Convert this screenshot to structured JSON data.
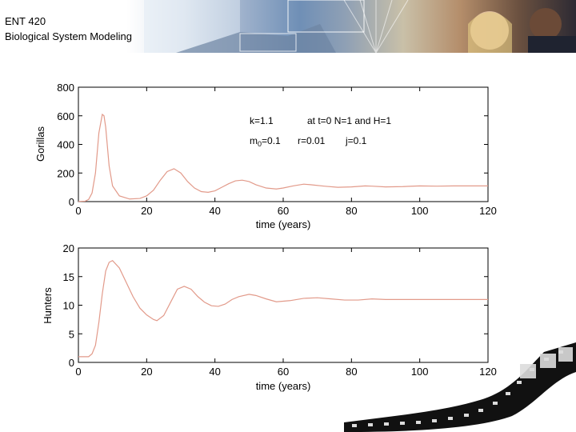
{
  "header": {
    "course_code": "ENT 420",
    "course_title": "Biological System Modeling"
  },
  "annotations": {
    "k": "k=1.1",
    "initial": "at t=0 N=1 and H=1",
    "m0": "m",
    "m0_sub": "0",
    "m0_value": "=0.1",
    "r": "r=0.01",
    "j": "j=0.1"
  },
  "colors": {
    "line": "#e29a8a",
    "axis": "#000000"
  },
  "chart_data": [
    {
      "type": "line",
      "xlabel": "time (years)",
      "ylabel": "Gorillas",
      "xlim": [
        0,
        120
      ],
      "ylim": [
        0,
        800
      ],
      "xticks": [
        0,
        20,
        40,
        60,
        80,
        100,
        120
      ],
      "yticks": [
        0,
        200,
        400,
        600,
        800
      ],
      "series": [
        {
          "x": [
            0,
            2,
            3,
            4,
            5,
            6,
            7,
            7.5,
            8,
            9,
            10,
            12,
            15,
            18,
            20,
            22,
            24,
            26,
            28,
            30,
            32,
            34,
            36,
            38,
            40,
            42,
            44,
            46,
            48,
            50,
            52,
            55,
            58,
            60,
            63,
            66,
            68,
            72,
            76,
            80,
            84,
            86,
            90,
            95,
            100,
            105,
            110,
            120
          ],
          "y": [
            1,
            3,
            15,
            60,
            200,
            480,
            610,
            600,
            520,
            250,
            110,
            40,
            18,
            22,
            40,
            80,
            150,
            210,
            230,
            200,
            140,
            95,
            70,
            65,
            75,
            100,
            125,
            145,
            150,
            140,
            118,
            95,
            88,
            95,
            110,
            122,
            118,
            108,
            100,
            103,
            110,
            108,
            103,
            105,
            110,
            108,
            110,
            110
          ]
        }
      ]
    },
    {
      "type": "line",
      "xlabel": "time (years)",
      "ylabel": "Hunters",
      "xlim": [
        0,
        120
      ],
      "ylim": [
        0,
        20
      ],
      "xticks": [
        0,
        20,
        40,
        60,
        80,
        100,
        120
      ],
      "yticks": [
        0,
        5,
        10,
        15,
        20
      ],
      "series": [
        {
          "x": [
            0,
            3,
            4,
            5,
            6,
            7,
            8,
            9,
            10,
            12,
            14,
            16,
            18,
            20,
            22,
            23,
            25,
            27,
            29,
            31,
            33,
            35,
            37,
            39,
            41,
            43,
            45,
            47,
            50,
            52,
            55,
            58,
            62,
            66,
            70,
            74,
            78,
            82,
            86,
            90,
            95,
            100,
            105,
            110,
            120
          ],
          "y": [
            1,
            1,
            1.5,
            3,
            7,
            12,
            16,
            17.5,
            17.8,
            16.5,
            14,
            11.5,
            9.5,
            8.3,
            7.5,
            7.3,
            8.2,
            10.5,
            12.8,
            13.3,
            12.8,
            11.5,
            10.5,
            9.9,
            9.8,
            10.2,
            11,
            11.5,
            11.9,
            11.7,
            11.1,
            10.6,
            10.8,
            11.2,
            11.3,
            11.1,
            10.9,
            10.9,
            11.1,
            11,
            11,
            11,
            11,
            11,
            11
          ]
        }
      ]
    }
  ]
}
